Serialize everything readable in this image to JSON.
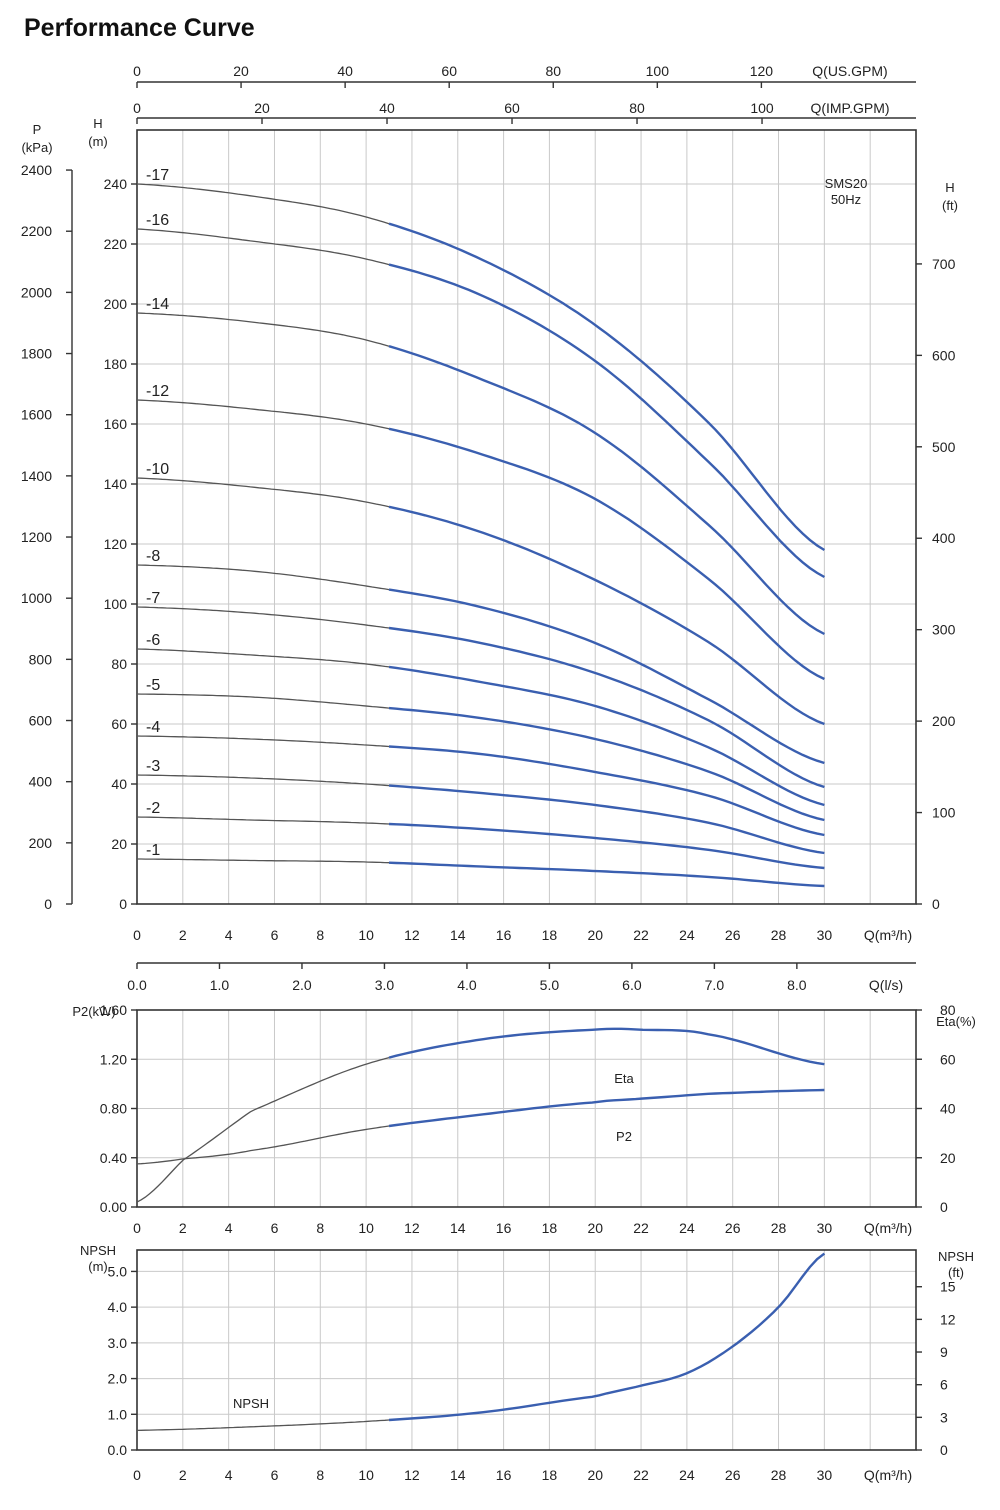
{
  "title": "Performance Curve",
  "colors": {
    "curve_operating": "#3a5fb0",
    "curve_extension": "#555555",
    "grid": "#c9c9c9",
    "axis": "#333333"
  },
  "chart_data": [
    {
      "id": "head",
      "type": "line",
      "model_label": "SMS20",
      "freq_label": "50Hz",
      "xlabel": "Q(m³/h)",
      "x_ticks": [
        0,
        2,
        4,
        6,
        8,
        10,
        12,
        14,
        16,
        18,
        20,
        22,
        24,
        26,
        28,
        30
      ],
      "xlim": [
        0,
        34
      ],
      "ylabel": "H (m)",
      "y_ticks": [
        0,
        20,
        40,
        60,
        80,
        100,
        120,
        140,
        160,
        180,
        200,
        220,
        240
      ],
      "ylim": [
        0,
        258
      ],
      "secondary_axes": {
        "pressure": {
          "label": "P (kPa)",
          "ticks": [
            0,
            200,
            400,
            600,
            800,
            1000,
            1200,
            1400,
            1600,
            1800,
            2000,
            2200,
            2400
          ]
        },
        "head_ft": {
          "label": "H (ft)",
          "ticks": [
            0,
            100,
            200,
            300,
            400,
            500,
            600,
            700
          ]
        },
        "us_gpm": {
          "label": "Q(US.GPM)",
          "ticks": [
            0,
            20,
            40,
            60,
            80,
            100,
            120
          ]
        },
        "imp_gpm": {
          "label": "Q(IMP.GPM)",
          "ticks": [
            0,
            20,
            40,
            60,
            80,
            100
          ]
        },
        "ls": {
          "label": "Q(l/s)",
          "ticks": [
            "0.0",
            "1.0",
            "2.0",
            "3.0",
            "4.0",
            "5.0",
            "6.0",
            "7.0",
            "8.0"
          ]
        }
      },
      "operating_range": [
        11,
        30
      ],
      "x": [
        0,
        5,
        10,
        15,
        20,
        25,
        30
      ],
      "series": [
        {
          "name": "-17",
          "values": [
            240,
            236,
            229,
            215,
            193,
            160,
            118
          ]
        },
        {
          "name": "-16",
          "values": [
            225,
            221,
            215,
            203,
            181,
            147,
            109
          ]
        },
        {
          "name": "-14",
          "values": [
            197,
            194,
            188,
            175,
            157,
            126,
            90
          ]
        },
        {
          "name": "-12",
          "values": [
            168,
            165,
            160,
            150,
            135,
            108,
            75
          ]
        },
        {
          "name": "-10",
          "values": [
            142,
            139,
            134,
            124,
            108,
            87,
            60
          ]
        },
        {
          "name": "-8",
          "values": [
            113,
            111,
            106,
            99,
            87,
            68,
            47
          ]
        },
        {
          "name": "-7",
          "values": [
            99,
            97,
            93,
            87,
            77,
            61,
            39
          ]
        },
        {
          "name": "-6",
          "values": [
            85,
            83,
            80,
            74,
            66,
            52,
            33
          ]
        },
        {
          "name": "-5",
          "values": [
            70,
            69,
            66,
            62,
            55,
            44,
            28
          ]
        },
        {
          "name": "-4",
          "values": [
            56,
            55,
            53,
            50,
            44,
            36,
            23
          ]
        },
        {
          "name": "-3",
          "values": [
            43,
            42,
            40,
            37,
            33,
            27,
            17
          ]
        },
        {
          "name": "-2",
          "values": [
            29,
            28,
            27,
            25,
            22,
            18,
            12
          ]
        },
        {
          "name": "-1",
          "values": [
            15,
            14.5,
            14,
            12.5,
            11,
            9,
            6
          ]
        }
      ]
    },
    {
      "id": "power_eff",
      "type": "line",
      "xlabel": "Q(m³/h)",
      "x_ticks": [
        0,
        2,
        4,
        6,
        8,
        10,
        12,
        14,
        16,
        18,
        20,
        22,
        24,
        26,
        28,
        30
      ],
      "xlim": [
        0,
        34
      ],
      "ylabel": "P2(kW)",
      "y_ticks": [
        "0.00",
        "0.40",
        "0.80",
        "1.20",
        "1.60"
      ],
      "ylim": [
        0,
        1.6
      ],
      "y2label": "Eta(%)",
      "y2_ticks": [
        0,
        20,
        40,
        60,
        80
      ],
      "y2lim": [
        0,
        80
      ],
      "operating_range": [
        11,
        30
      ],
      "x": [
        0,
        2,
        5,
        10,
        15,
        20,
        22,
        25,
        30
      ],
      "series": [
        {
          "name": "Eta",
          "axis": "y2",
          "values": [
            2,
            19,
            39,
            58,
            68,
            72,
            72,
            70,
            58
          ]
        },
        {
          "name": "P2",
          "axis": "y",
          "values": [
            0.35,
            0.39,
            0.46,
            0.63,
            0.75,
            0.85,
            0.88,
            0.92,
            0.95
          ]
        }
      ]
    },
    {
      "id": "npsh",
      "type": "line",
      "xlabel": "Q(m³/h)",
      "x_ticks": [
        0,
        2,
        4,
        6,
        8,
        10,
        12,
        14,
        16,
        18,
        20,
        22,
        24,
        26,
        28,
        30
      ],
      "xlim": [
        0,
        34
      ],
      "ylabel": "NPSH (m)",
      "y_ticks": [
        "0.0",
        "1.0",
        "2.0",
        "3.0",
        "4.0",
        "5.0"
      ],
      "ylim": [
        0,
        5.6
      ],
      "y2label": "NPSH (ft)",
      "y2_ticks": [
        0,
        3,
        6,
        9,
        12,
        15
      ],
      "operating_range": [
        11,
        30
      ],
      "x": [
        0,
        5,
        10,
        15,
        20,
        22,
        24,
        26,
        28,
        30
      ],
      "series": [
        {
          "name": "NPSH",
          "values": [
            0.55,
            0.65,
            0.8,
            1.05,
            1.5,
            1.8,
            2.15,
            2.9,
            4.0,
            5.5
          ]
        }
      ]
    }
  ]
}
